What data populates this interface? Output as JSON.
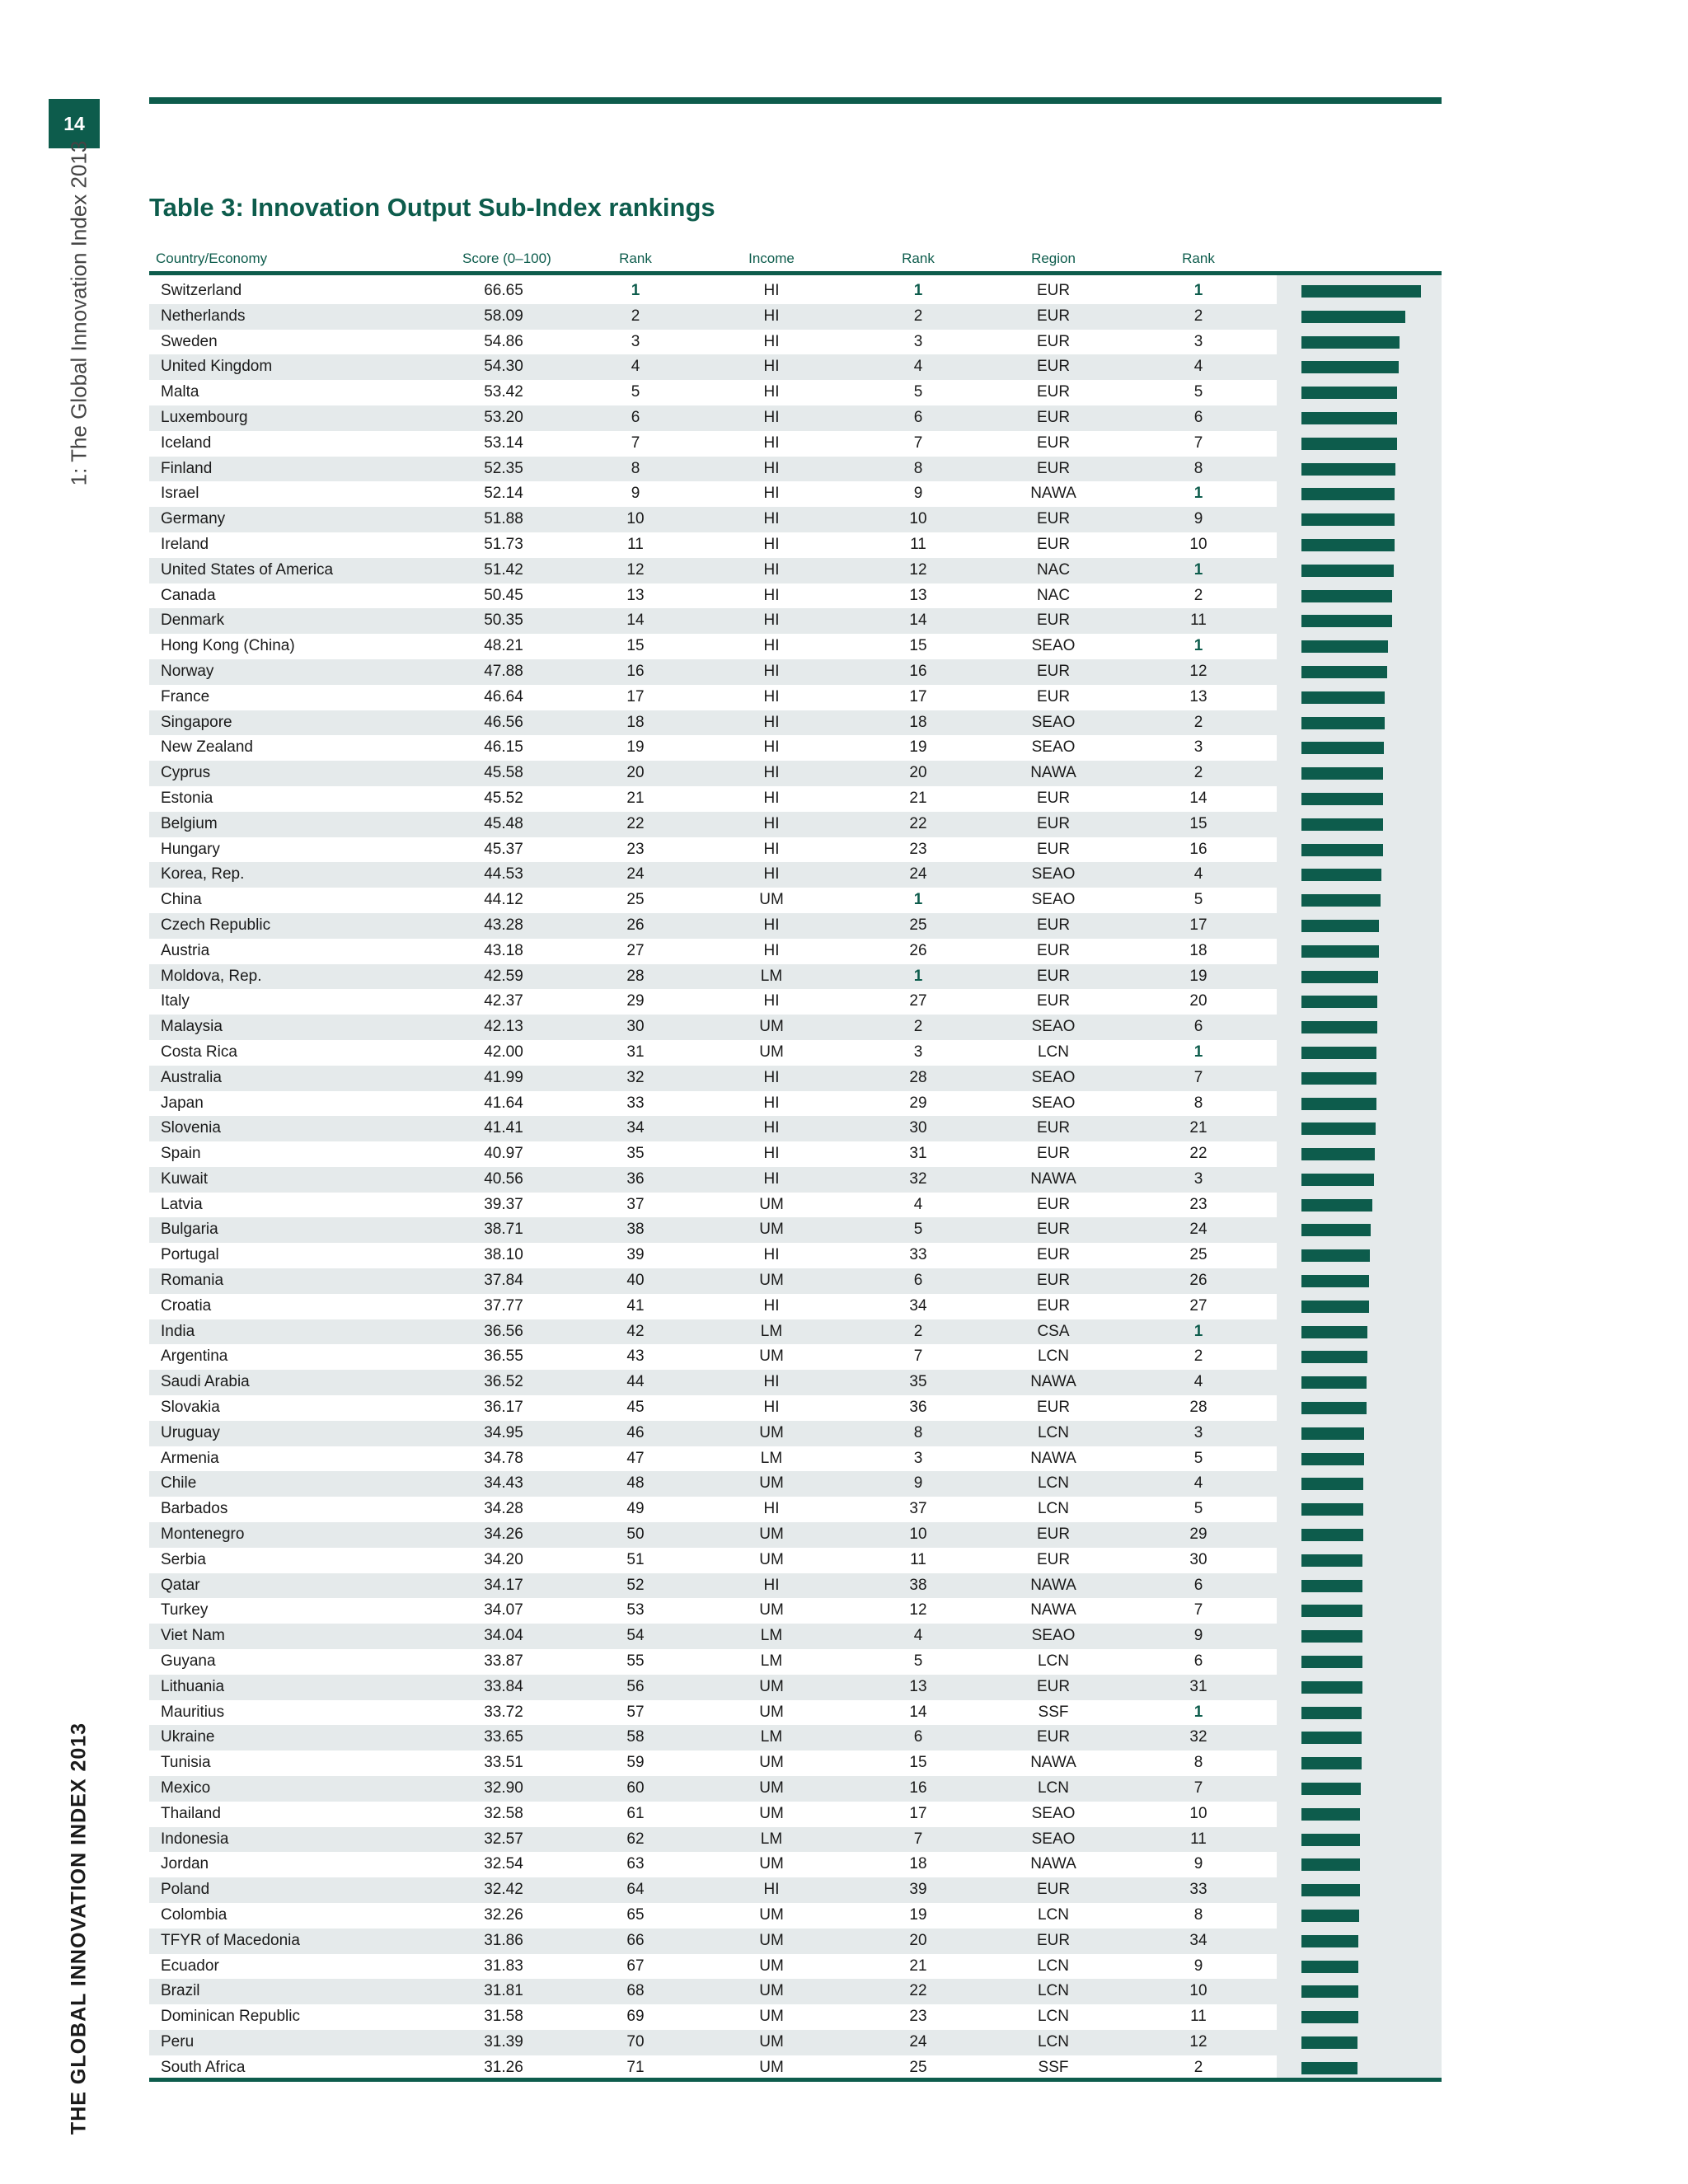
{
  "page_number": "14",
  "running_head": "1: The Global Innovation Index 2013",
  "running_foot": "THE GLOBAL INNOVATION INDEX 2013",
  "table_title": "Table 3: Innovation Output Sub-Index rankings",
  "columns": {
    "country": "Country/Economy",
    "score": "Score (0–100)",
    "rank": "Rank",
    "income": "Income",
    "income_rank": "Rank",
    "region": "Region",
    "region_rank": "Rank"
  },
  "colors": {
    "accent": "#0d5c4c",
    "stripe": "#e5eaeb"
  },
  "score_scale_max": 66.65,
  "rows": [
    [
      "Switzerland",
      "66.65",
      "1",
      "HI",
      "1",
      "EUR",
      "1"
    ],
    [
      "Netherlands",
      "58.09",
      "2",
      "HI",
      "2",
      "EUR",
      "2"
    ],
    [
      "Sweden",
      "54.86",
      "3",
      "HI",
      "3",
      "EUR",
      "3"
    ],
    [
      "United Kingdom",
      "54.30",
      "4",
      "HI",
      "4",
      "EUR",
      "4"
    ],
    [
      "Malta",
      "53.42",
      "5",
      "HI",
      "5",
      "EUR",
      "5"
    ],
    [
      "Luxembourg",
      "53.20",
      "6",
      "HI",
      "6",
      "EUR",
      "6"
    ],
    [
      "Iceland",
      "53.14",
      "7",
      "HI",
      "7",
      "EUR",
      "7"
    ],
    [
      "Finland",
      "52.35",
      "8",
      "HI",
      "8",
      "EUR",
      "8"
    ],
    [
      "Israel",
      "52.14",
      "9",
      "HI",
      "9",
      "NAWA",
      "1"
    ],
    [
      "Germany",
      "51.88",
      "10",
      "HI",
      "10",
      "EUR",
      "9"
    ],
    [
      "Ireland",
      "51.73",
      "11",
      "HI",
      "11",
      "EUR",
      "10"
    ],
    [
      "United States of America",
      "51.42",
      "12",
      "HI",
      "12",
      "NAC",
      "1"
    ],
    [
      "Canada",
      "50.45",
      "13",
      "HI",
      "13",
      "NAC",
      "2"
    ],
    [
      "Denmark",
      "50.35",
      "14",
      "HI",
      "14",
      "EUR",
      "11"
    ],
    [
      "Hong Kong (China)",
      "48.21",
      "15",
      "HI",
      "15",
      "SEAO",
      "1"
    ],
    [
      "Norway",
      "47.88",
      "16",
      "HI",
      "16",
      "EUR",
      "12"
    ],
    [
      "France",
      "46.64",
      "17",
      "HI",
      "17",
      "EUR",
      "13"
    ],
    [
      "Singapore",
      "46.56",
      "18",
      "HI",
      "18",
      "SEAO",
      "2"
    ],
    [
      "New Zealand",
      "46.15",
      "19",
      "HI",
      "19",
      "SEAO",
      "3"
    ],
    [
      "Cyprus",
      "45.58",
      "20",
      "HI",
      "20",
      "NAWA",
      "2"
    ],
    [
      "Estonia",
      "45.52",
      "21",
      "HI",
      "21",
      "EUR",
      "14"
    ],
    [
      "Belgium",
      "45.48",
      "22",
      "HI",
      "22",
      "EUR",
      "15"
    ],
    [
      "Hungary",
      "45.37",
      "23",
      "HI",
      "23",
      "EUR",
      "16"
    ],
    [
      "Korea, Rep.",
      "44.53",
      "24",
      "HI",
      "24",
      "SEAO",
      "4"
    ],
    [
      "China",
      "44.12",
      "25",
      "UM",
      "1",
      "SEAO",
      "5"
    ],
    [
      "Czech Republic",
      "43.28",
      "26",
      "HI",
      "25",
      "EUR",
      "17"
    ],
    [
      "Austria",
      "43.18",
      "27",
      "HI",
      "26",
      "EUR",
      "18"
    ],
    [
      "Moldova, Rep.",
      "42.59",
      "28",
      "LM",
      "1",
      "EUR",
      "19"
    ],
    [
      "Italy",
      "42.37",
      "29",
      "HI",
      "27",
      "EUR",
      "20"
    ],
    [
      "Malaysia",
      "42.13",
      "30",
      "UM",
      "2",
      "SEAO",
      "6"
    ],
    [
      "Costa Rica",
      "42.00",
      "31",
      "UM",
      "3",
      "LCN",
      "1"
    ],
    [
      "Australia",
      "41.99",
      "32",
      "HI",
      "28",
      "SEAO",
      "7"
    ],
    [
      "Japan",
      "41.64",
      "33",
      "HI",
      "29",
      "SEAO",
      "8"
    ],
    [
      "Slovenia",
      "41.41",
      "34",
      "HI",
      "30",
      "EUR",
      "21"
    ],
    [
      "Spain",
      "40.97",
      "35",
      "HI",
      "31",
      "EUR",
      "22"
    ],
    [
      "Kuwait",
      "40.56",
      "36",
      "HI",
      "32",
      "NAWA",
      "3"
    ],
    [
      "Latvia",
      "39.37",
      "37",
      "UM",
      "4",
      "EUR",
      "23"
    ],
    [
      "Bulgaria",
      "38.71",
      "38",
      "UM",
      "5",
      "EUR",
      "24"
    ],
    [
      "Portugal",
      "38.10",
      "39",
      "HI",
      "33",
      "EUR",
      "25"
    ],
    [
      "Romania",
      "37.84",
      "40",
      "UM",
      "6",
      "EUR",
      "26"
    ],
    [
      "Croatia",
      "37.77",
      "41",
      "HI",
      "34",
      "EUR",
      "27"
    ],
    [
      "India",
      "36.56",
      "42",
      "LM",
      "2",
      "CSA",
      "1"
    ],
    [
      "Argentina",
      "36.55",
      "43",
      "UM",
      "7",
      "LCN",
      "2"
    ],
    [
      "Saudi Arabia",
      "36.52",
      "44",
      "HI",
      "35",
      "NAWA",
      "4"
    ],
    [
      "Slovakia",
      "36.17",
      "45",
      "HI",
      "36",
      "EUR",
      "28"
    ],
    [
      "Uruguay",
      "34.95",
      "46",
      "UM",
      "8",
      "LCN",
      "3"
    ],
    [
      "Armenia",
      "34.78",
      "47",
      "LM",
      "3",
      "NAWA",
      "5"
    ],
    [
      "Chile",
      "34.43",
      "48",
      "UM",
      "9",
      "LCN",
      "4"
    ],
    [
      "Barbados",
      "34.28",
      "49",
      "HI",
      "37",
      "LCN",
      "5"
    ],
    [
      "Montenegro",
      "34.26",
      "50",
      "UM",
      "10",
      "EUR",
      "29"
    ],
    [
      "Serbia",
      "34.20",
      "51",
      "UM",
      "11",
      "EUR",
      "30"
    ],
    [
      "Qatar",
      "34.17",
      "52",
      "HI",
      "38",
      "NAWA",
      "6"
    ],
    [
      "Turkey",
      "34.07",
      "53",
      "UM",
      "12",
      "NAWA",
      "7"
    ],
    [
      "Viet Nam",
      "34.04",
      "54",
      "LM",
      "4",
      "SEAO",
      "9"
    ],
    [
      "Guyana",
      "33.87",
      "55",
      "LM",
      "5",
      "LCN",
      "6"
    ],
    [
      "Lithuania",
      "33.84",
      "56",
      "UM",
      "13",
      "EUR",
      "31"
    ],
    [
      "Mauritius",
      "33.72",
      "57",
      "UM",
      "14",
      "SSF",
      "1"
    ],
    [
      "Ukraine",
      "33.65",
      "58",
      "LM",
      "6",
      "EUR",
      "32"
    ],
    [
      "Tunisia",
      "33.51",
      "59",
      "UM",
      "15",
      "NAWA",
      "8"
    ],
    [
      "Mexico",
      "32.90",
      "60",
      "UM",
      "16",
      "LCN",
      "7"
    ],
    [
      "Thailand",
      "32.58",
      "61",
      "UM",
      "17",
      "SEAO",
      "10"
    ],
    [
      "Indonesia",
      "32.57",
      "62",
      "LM",
      "7",
      "SEAO",
      "11"
    ],
    [
      "Jordan",
      "32.54",
      "63",
      "UM",
      "18",
      "NAWA",
      "9"
    ],
    [
      "Poland",
      "32.42",
      "64",
      "HI",
      "39",
      "EUR",
      "33"
    ],
    [
      "Colombia",
      "32.26",
      "65",
      "UM",
      "19",
      "LCN",
      "8"
    ],
    [
      "TFYR of Macedonia",
      "31.86",
      "66",
      "UM",
      "20",
      "EUR",
      "34"
    ],
    [
      "Ecuador",
      "31.83",
      "67",
      "UM",
      "21",
      "LCN",
      "9"
    ],
    [
      "Brazil",
      "31.81",
      "68",
      "UM",
      "22",
      "LCN",
      "10"
    ],
    [
      "Dominican Republic",
      "31.58",
      "69",
      "UM",
      "23",
      "LCN",
      "11"
    ],
    [
      "Peru",
      "31.39",
      "70",
      "UM",
      "24",
      "LCN",
      "12"
    ],
    [
      "South Africa",
      "31.26",
      "71",
      "UM",
      "25",
      "SSF",
      "2"
    ]
  ]
}
